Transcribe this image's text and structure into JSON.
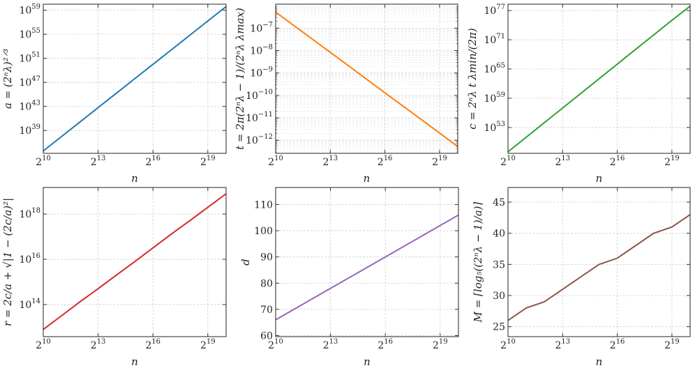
{
  "chart_data": [
    {
      "type": "line",
      "yscale": "log",
      "xscale": "log2",
      "grid": true,
      "xlabel": "n",
      "ylabel": "a = (2ⁿλ)²ᐟ³",
      "color": "#1f77b4",
      "x": [
        1024,
        2048,
        4096,
        8192,
        16384,
        32768,
        65536,
        131072,
        262144,
        524288,
        1048576
      ],
      "values": [
        4e+35,
        1e+38,
        2.5e+40,
        6.3e+42,
        1.6e+45,
        4e+47,
        1e+50,
        2.5e+52,
        6.3e+54,
        1.6e+57,
        4e+59
      ],
      "xlim": [
        1024,
        1048576
      ],
      "ylim": [
        1.6e+35,
        1e+60
      ],
      "xticks": [
        {
          "base": "2",
          "exp": "10",
          "v": 1024
        },
        {
          "base": "2",
          "exp": "13",
          "v": 8192
        },
        {
          "base": "2",
          "exp": "16",
          "v": 65536
        },
        {
          "base": "2",
          "exp": "19",
          "v": 524288
        }
      ],
      "yticks": [
        {
          "base": "10",
          "exp": "39",
          "v": 1e+39
        },
        {
          "base": "10",
          "exp": "43",
          "v": 1e+43
        },
        {
          "base": "10",
          "exp": "47",
          "v": 1e+47
        },
        {
          "base": "10",
          "exp": "51",
          "v": 1e+51
        },
        {
          "base": "10",
          "exp": "55",
          "v": 1e+55
        },
        {
          "base": "10",
          "exp": "59",
          "v": 1e+59
        }
      ],
      "minor_grid": false
    },
    {
      "type": "line",
      "yscale": "log",
      "xscale": "log2",
      "grid": true,
      "xlabel": "n",
      "ylabel": "t = 2π(2ⁿλ − 1)/(2ⁿλ λmax)",
      "color": "#ff7f0e",
      "x": [
        1024,
        2048,
        4096,
        8192,
        16384,
        32768,
        65536,
        131072,
        262144,
        524288,
        1048576
      ],
      "values": [
        5.2e-07,
        1.3e-07,
        3.3e-08,
        8.3e-09,
        2.1e-09,
        5.2e-10,
        1.3e-10,
        3.3e-11,
        8.3e-12,
        2.1e-12,
        5.2e-13
      ],
      "xlim": [
        1024,
        1048576
      ],
      "ylim": [
        2.6e-13,
        1.17e-06
      ],
      "xticks": [
        {
          "base": "2",
          "exp": "10",
          "v": 1024
        },
        {
          "base": "2",
          "exp": "13",
          "v": 8192
        },
        {
          "base": "2",
          "exp": "16",
          "v": 65536
        },
        {
          "base": "2",
          "exp": "19",
          "v": 524288
        }
      ],
      "yticks": [
        {
          "base": "10",
          "exp": "−12",
          "v": 1e-12
        },
        {
          "base": "10",
          "exp": "−11",
          "v": 1e-11
        },
        {
          "base": "10",
          "exp": "−10",
          "v": 1e-10
        },
        {
          "base": "10",
          "exp": "−9",
          "v": 1e-09
        },
        {
          "base": "10",
          "exp": "−8",
          "v": 1e-08
        },
        {
          "base": "10",
          "exp": "−7",
          "v": 1e-07
        }
      ],
      "minor_grid": true
    },
    {
      "type": "line",
      "yscale": "log",
      "xscale": "log2",
      "grid": true,
      "xlabel": "n",
      "ylabel": "c = 2ⁿλ t λmin/(2π)",
      "color": "#2ca02c",
      "x": [
        1024,
        2048,
        4096,
        8192,
        16384,
        32768,
        65536,
        131072,
        262144,
        524288,
        1048576
      ],
      "values": [
        1e+48,
        1e+51,
        1e+54,
        1e+57,
        1e+60,
        1e+63,
        1e+66,
        1e+69,
        1e+72,
        1e+75,
        8e+77
      ],
      "xlim": [
        1024,
        1048576
      ],
      "ylim": [
        5e+47,
        2e+78
      ],
      "xticks": [
        {
          "base": "2",
          "exp": "10",
          "v": 1024
        },
        {
          "base": "2",
          "exp": "13",
          "v": 8192
        },
        {
          "base": "2",
          "exp": "16",
          "v": 65536
        },
        {
          "base": "2",
          "exp": "19",
          "v": 524288
        }
      ],
      "yticks": [
        {
          "base": "10",
          "exp": "53",
          "v": 1e+53
        },
        {
          "base": "10",
          "exp": "59",
          "v": 1e+59
        },
        {
          "base": "10",
          "exp": "65",
          "v": 1e+65
        },
        {
          "base": "10",
          "exp": "71",
          "v": 1e+71
        },
        {
          "base": "10",
          "exp": "77",
          "v": 1e+77
        }
      ],
      "minor_grid": false
    },
    {
      "type": "line",
      "yscale": "log",
      "xscale": "log2",
      "grid": true,
      "xlabel": "n",
      "ylabel": "r = 2c/a + √|1 − (2c/a)²|",
      "color": "#d62728",
      "x": [
        1024,
        2048,
        4096,
        8192,
        16384,
        32768,
        65536,
        131072,
        262144,
        524288,
        1048576
      ],
      "values": [
        7900000000000.0,
        32000000000000.0,
        130000000000000.0,
        500000000000000.0,
        2000000000000000.0,
        7900000000000000.0,
        3.2e+16,
        1.3e+17,
        5e+17,
        2e+18,
        7.9e+18
      ],
      "xlim": [
        1024,
        1048576
      ],
      "ylim": [
        3800000000000.0,
        1.5e+19
      ],
      "xticks": [
        {
          "base": "2",
          "exp": "10",
          "v": 1024
        },
        {
          "base": "2",
          "exp": "13",
          "v": 8192
        },
        {
          "base": "2",
          "exp": "16",
          "v": 65536
        },
        {
          "base": "2",
          "exp": "19",
          "v": 524288
        }
      ],
      "yticks": [
        {
          "base": "10",
          "exp": "14",
          "v": 100000000000000.0
        },
        {
          "base": "10",
          "exp": "16",
          "v": 1e+16
        },
        {
          "base": "10",
          "exp": "18",
          "v": 1e+18
        }
      ],
      "minor_grid": false
    },
    {
      "type": "line",
      "yscale": "linear",
      "xscale": "log2",
      "grid": true,
      "xlabel": "n",
      "ylabel": "d",
      "color": "#9467bd",
      "x": [
        1024,
        2048,
        4096,
        8192,
        16384,
        32768,
        65536,
        131072,
        262144,
        524288,
        1048576
      ],
      "values": [
        66,
        70,
        74,
        78,
        82,
        86,
        90,
        94,
        98,
        102,
        106
      ],
      "xlim": [
        1024,
        1048576
      ],
      "ylim": [
        59.6,
        116.5
      ],
      "xticks": [
        {
          "base": "2",
          "exp": "10",
          "v": 1024
        },
        {
          "base": "2",
          "exp": "13",
          "v": 8192
        },
        {
          "base": "2",
          "exp": "16",
          "v": 65536
        },
        {
          "base": "2",
          "exp": "19",
          "v": 524288
        }
      ],
      "yticks": [
        {
          "base": "60",
          "exp": "",
          "v": 60
        },
        {
          "base": "70",
          "exp": "",
          "v": 70
        },
        {
          "base": "80",
          "exp": "",
          "v": 80
        },
        {
          "base": "90",
          "exp": "",
          "v": 90
        },
        {
          "base": "100",
          "exp": "",
          "v": 100
        },
        {
          "base": "110",
          "exp": "",
          "v": 110
        }
      ],
      "minor_grid": false
    },
    {
      "type": "line",
      "yscale": "linear",
      "xscale": "log2",
      "grid": true,
      "xlabel": "n",
      "ylabel": "M = ⌈log₅((2ⁿλ − 1)/a)⌉",
      "color": "#8c564b",
      "x": [
        1024,
        2048,
        4096,
        8192,
        16384,
        32768,
        65536,
        131072,
        262144,
        524288,
        1048576
      ],
      "values": [
        26,
        28,
        29,
        31,
        33,
        35,
        36,
        38,
        40,
        41,
        43
      ],
      "xlim": [
        1024,
        1048576
      ],
      "ylim": [
        23.4,
        47.35
      ],
      "xticks": [
        {
          "base": "2",
          "exp": "10",
          "v": 1024
        },
        {
          "base": "2",
          "exp": "13",
          "v": 8192
        },
        {
          "base": "2",
          "exp": "16",
          "v": 65536
        },
        {
          "base": "2",
          "exp": "19",
          "v": 524288
        }
      ],
      "yticks": [
        {
          "base": "25",
          "exp": "",
          "v": 25
        },
        {
          "base": "30",
          "exp": "",
          "v": 30
        },
        {
          "base": "35",
          "exp": "",
          "v": 35
        },
        {
          "base": "40",
          "exp": "",
          "v": 40
        },
        {
          "base": "45",
          "exp": "",
          "v": 45
        }
      ],
      "minor_grid": false
    }
  ]
}
